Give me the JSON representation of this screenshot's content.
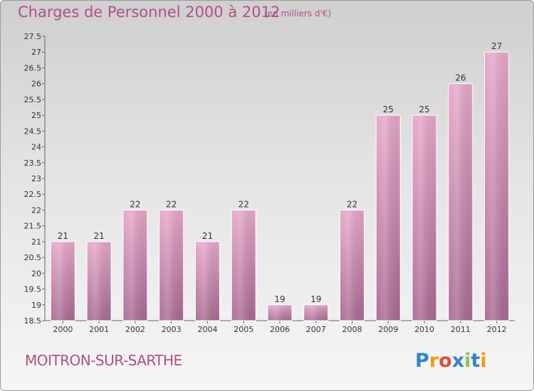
{
  "header": {
    "title": "Charges de Personnel 2000 à 2012",
    "subtitle": "(en milliers d'€)"
  },
  "footer": {
    "city": "MOITRON-SUR-SARTHE",
    "brand": "Proxiti"
  },
  "colors": {
    "bar_top": "#e6a7c9",
    "bar_bottom": "#a86a92",
    "title": "#b24f86"
  },
  "chart_data": {
    "type": "bar",
    "categories": [
      "2000",
      "2001",
      "2002",
      "2003",
      "2004",
      "2005",
      "2006",
      "2007",
      "2008",
      "2009",
      "2010",
      "2011",
      "2012"
    ],
    "values": [
      21,
      21,
      22,
      22,
      21,
      22,
      19,
      19,
      22,
      25,
      25,
      26,
      27
    ],
    "data_labels": [
      "21",
      "21",
      "22",
      "22",
      "21",
      "22",
      "19",
      "19",
      "22",
      "25",
      "25",
      "26",
      "27"
    ],
    "ylim": [
      18.5,
      27.5
    ],
    "yticks": [
      "18.5",
      "19",
      "19.5",
      "20",
      "20.5",
      "21",
      "21.5",
      "22",
      "22.5",
      "23",
      "23.5",
      "24",
      "24.5",
      "25",
      "25.5",
      "26",
      "26.5",
      "27",
      "27.5"
    ],
    "grid": false,
    "legend": "none"
  }
}
